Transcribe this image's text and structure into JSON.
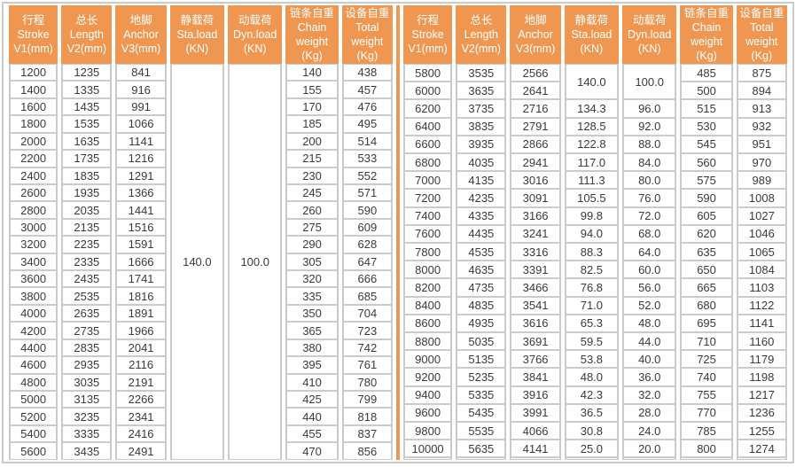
{
  "colors": {
    "header_bg": "#EF9751",
    "divider": "#EF9751",
    "border": "#CBCBCB",
    "text": "#3A3A3A"
  },
  "table": {
    "columns": [
      "行程\nStroke\nV1(mm)",
      "总长\nLength\nV2(mm)",
      "地脚\nAnchor\nV3(mm)",
      "静载荷\nSta.load\n(KN)",
      "动载荷\nDyn.load\n(KN)",
      "链条自重\nChain\nweight\n(Kg)",
      "设备自重\nTotal\nweight\n(Kg)"
    ],
    "left_rows": [
      [
        "1200",
        "1235",
        "841",
        {
          "v": "140.0",
          "rs": 23
        },
        {
          "v": "100.0",
          "rs": 23
        },
        "140",
        "438"
      ],
      [
        "1400",
        "1335",
        "916",
        null,
        null,
        "155",
        "457"
      ],
      [
        "1600",
        "1435",
        "991",
        null,
        null,
        "170",
        "476"
      ],
      [
        "1800",
        "1535",
        "1066",
        null,
        null,
        "185",
        "495"
      ],
      [
        "2000",
        "1635",
        "1141",
        null,
        null,
        "200",
        "514"
      ],
      [
        "2200",
        "1735",
        "1216",
        null,
        null,
        "215",
        "533"
      ],
      [
        "2400",
        "1835",
        "1291",
        null,
        null,
        "230",
        "552"
      ],
      [
        "2600",
        "1935",
        "1366",
        null,
        null,
        "245",
        "571"
      ],
      [
        "2800",
        "2035",
        "1441",
        null,
        null,
        "260",
        "590"
      ],
      [
        "3000",
        "2135",
        "1516",
        null,
        null,
        "275",
        "609"
      ],
      [
        "3200",
        "2235",
        "1591",
        null,
        null,
        "290",
        "628"
      ],
      [
        "3400",
        "2335",
        "1666",
        null,
        null,
        "305",
        "647"
      ],
      [
        "3600",
        "2435",
        "1741",
        null,
        null,
        "320",
        "666"
      ],
      [
        "3800",
        "2535",
        "1816",
        null,
        null,
        "335",
        "685"
      ],
      [
        "4000",
        "2635",
        "1891",
        null,
        null,
        "350",
        "704"
      ],
      [
        "4200",
        "2735",
        "1966",
        null,
        null,
        "365",
        "723"
      ],
      [
        "4400",
        "2835",
        "2041",
        null,
        null,
        "380",
        "742"
      ],
      [
        "4600",
        "2935",
        "2116",
        null,
        null,
        "395",
        "761"
      ],
      [
        "4800",
        "3035",
        "2191",
        null,
        null,
        "410",
        "780"
      ],
      [
        "5000",
        "3135",
        "2266",
        null,
        null,
        "425",
        "799"
      ],
      [
        "5200",
        "3235",
        "2341",
        null,
        null,
        "440",
        "818"
      ],
      [
        "5400",
        "3335",
        "2416",
        null,
        null,
        "455",
        "837"
      ],
      [
        "5600",
        "3435",
        "2491",
        null,
        null,
        "470",
        "856"
      ]
    ],
    "right_rows": [
      [
        "5800",
        "3535",
        "2566",
        {
          "v": "140.0",
          "rs": 2
        },
        {
          "v": "100.0",
          "rs": 2
        },
        "485",
        "875"
      ],
      [
        "6000",
        "3635",
        "2641",
        null,
        null,
        "500",
        "894"
      ],
      [
        "6200",
        "3735",
        "2716",
        "134.3",
        "96.0",
        "515",
        "913"
      ],
      [
        "6400",
        "3835",
        "2791",
        "128.5",
        "92.0",
        "530",
        "932"
      ],
      [
        "6600",
        "3935",
        "2866",
        "122.8",
        "88.0",
        "545",
        "951"
      ],
      [
        "6800",
        "4035",
        "2941",
        "117.0",
        "84.0",
        "560",
        "970"
      ],
      [
        "7000",
        "4135",
        "3016",
        "111.3",
        "80.0",
        "575",
        "989"
      ],
      [
        "7200",
        "4235",
        "3091",
        "105.5",
        "76.0",
        "590",
        "1008"
      ],
      [
        "7400",
        "4335",
        "3166",
        "99.8",
        "72.0",
        "605",
        "1027"
      ],
      [
        "7600",
        "4435",
        "3241",
        "94.0",
        "68.0",
        "620",
        "1046"
      ],
      [
        "7800",
        "4535",
        "3316",
        "88.3",
        "64.0",
        "635",
        "1065"
      ],
      [
        "8000",
        "4635",
        "3391",
        "82.5",
        "60.0",
        "650",
        "1084"
      ],
      [
        "8200",
        "4735",
        "3466",
        "76.8",
        "56.0",
        "665",
        "1103"
      ],
      [
        "8400",
        "4835",
        "3541",
        "71.0",
        "52.0",
        "680",
        "1122"
      ],
      [
        "8600",
        "4935",
        "3616",
        "65.3",
        "48.0",
        "695",
        "1141"
      ],
      [
        "8800",
        "5035",
        "3691",
        "59.5",
        "44.0",
        "710",
        "1160"
      ],
      [
        "9000",
        "5135",
        "3766",
        "53.8",
        "40.0",
        "725",
        "1179"
      ],
      [
        "9200",
        "5235",
        "3841",
        "48.0",
        "36.0",
        "740",
        "1198"
      ],
      [
        "9400",
        "5335",
        "3916",
        "42.3",
        "32.0",
        "755",
        "1217"
      ],
      [
        "9600",
        "5435",
        "3991",
        "36.5",
        "28.0",
        "770",
        "1236"
      ],
      [
        "9800",
        "5535",
        "4066",
        "30.8",
        "24.0",
        "785",
        "1255"
      ],
      [
        "10000",
        "5635",
        "4141",
        "25.0",
        "20.0",
        "800",
        "1274"
      ],
      [
        "",
        "",
        "",
        "",
        "",
        "",
        ""
      ]
    ]
  }
}
